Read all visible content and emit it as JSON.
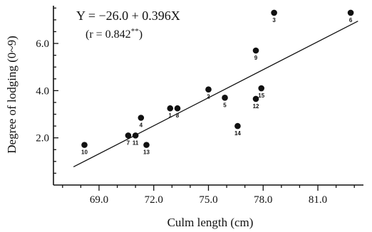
{
  "chart_data": {
    "type": "scatter",
    "xlabel": "Culm length (cm)",
    "ylabel": "Degree of lodging (0~9)",
    "xlim": [
      66.5,
      83.5
    ],
    "ylim": [
      0,
      7.6
    ],
    "x_ticks": [
      "69.0",
      "72.0",
      "75.0",
      "78.0",
      "81.0"
    ],
    "y_ticks": [
      "2.0",
      "4.0",
      "6.0"
    ],
    "annotations": {
      "equation": "Y = −26.0 + 0.396X",
      "r_prefix": "(r = 0.842",
      "r_sig": "**",
      "r_suffix": ")"
    },
    "regression": {
      "intercept": -26.0,
      "slope": 0.396,
      "x_from": 67.6,
      "x_to": 83.2
    },
    "points": [
      {
        "label": "10",
        "x": 68.2,
        "y": 1.7
      },
      {
        "label": "7",
        "x": 70.6,
        "y": 2.1
      },
      {
        "label": "11",
        "x": 71.0,
        "y": 2.1
      },
      {
        "label": "4",
        "x": 71.3,
        "y": 2.85
      },
      {
        "label": "13",
        "x": 71.6,
        "y": 1.7
      },
      {
        "label": "1",
        "x": 72.9,
        "y": 3.25
      },
      {
        "label": "8",
        "x": 73.3,
        "y": 3.25
      },
      {
        "label": "2",
        "x": 75.0,
        "y": 4.05
      },
      {
        "label": "5",
        "x": 75.9,
        "y": 3.7
      },
      {
        "label": "14",
        "x": 76.6,
        "y": 2.5
      },
      {
        "label": "12",
        "x": 77.6,
        "y": 3.65
      },
      {
        "label": "15",
        "x": 77.9,
        "y": 4.1
      },
      {
        "label": "9",
        "x": 77.6,
        "y": 5.7
      },
      {
        "label": "3",
        "x": 78.6,
        "y": 7.3
      },
      {
        "label": "6",
        "x": 82.8,
        "y": 7.3
      }
    ]
  }
}
